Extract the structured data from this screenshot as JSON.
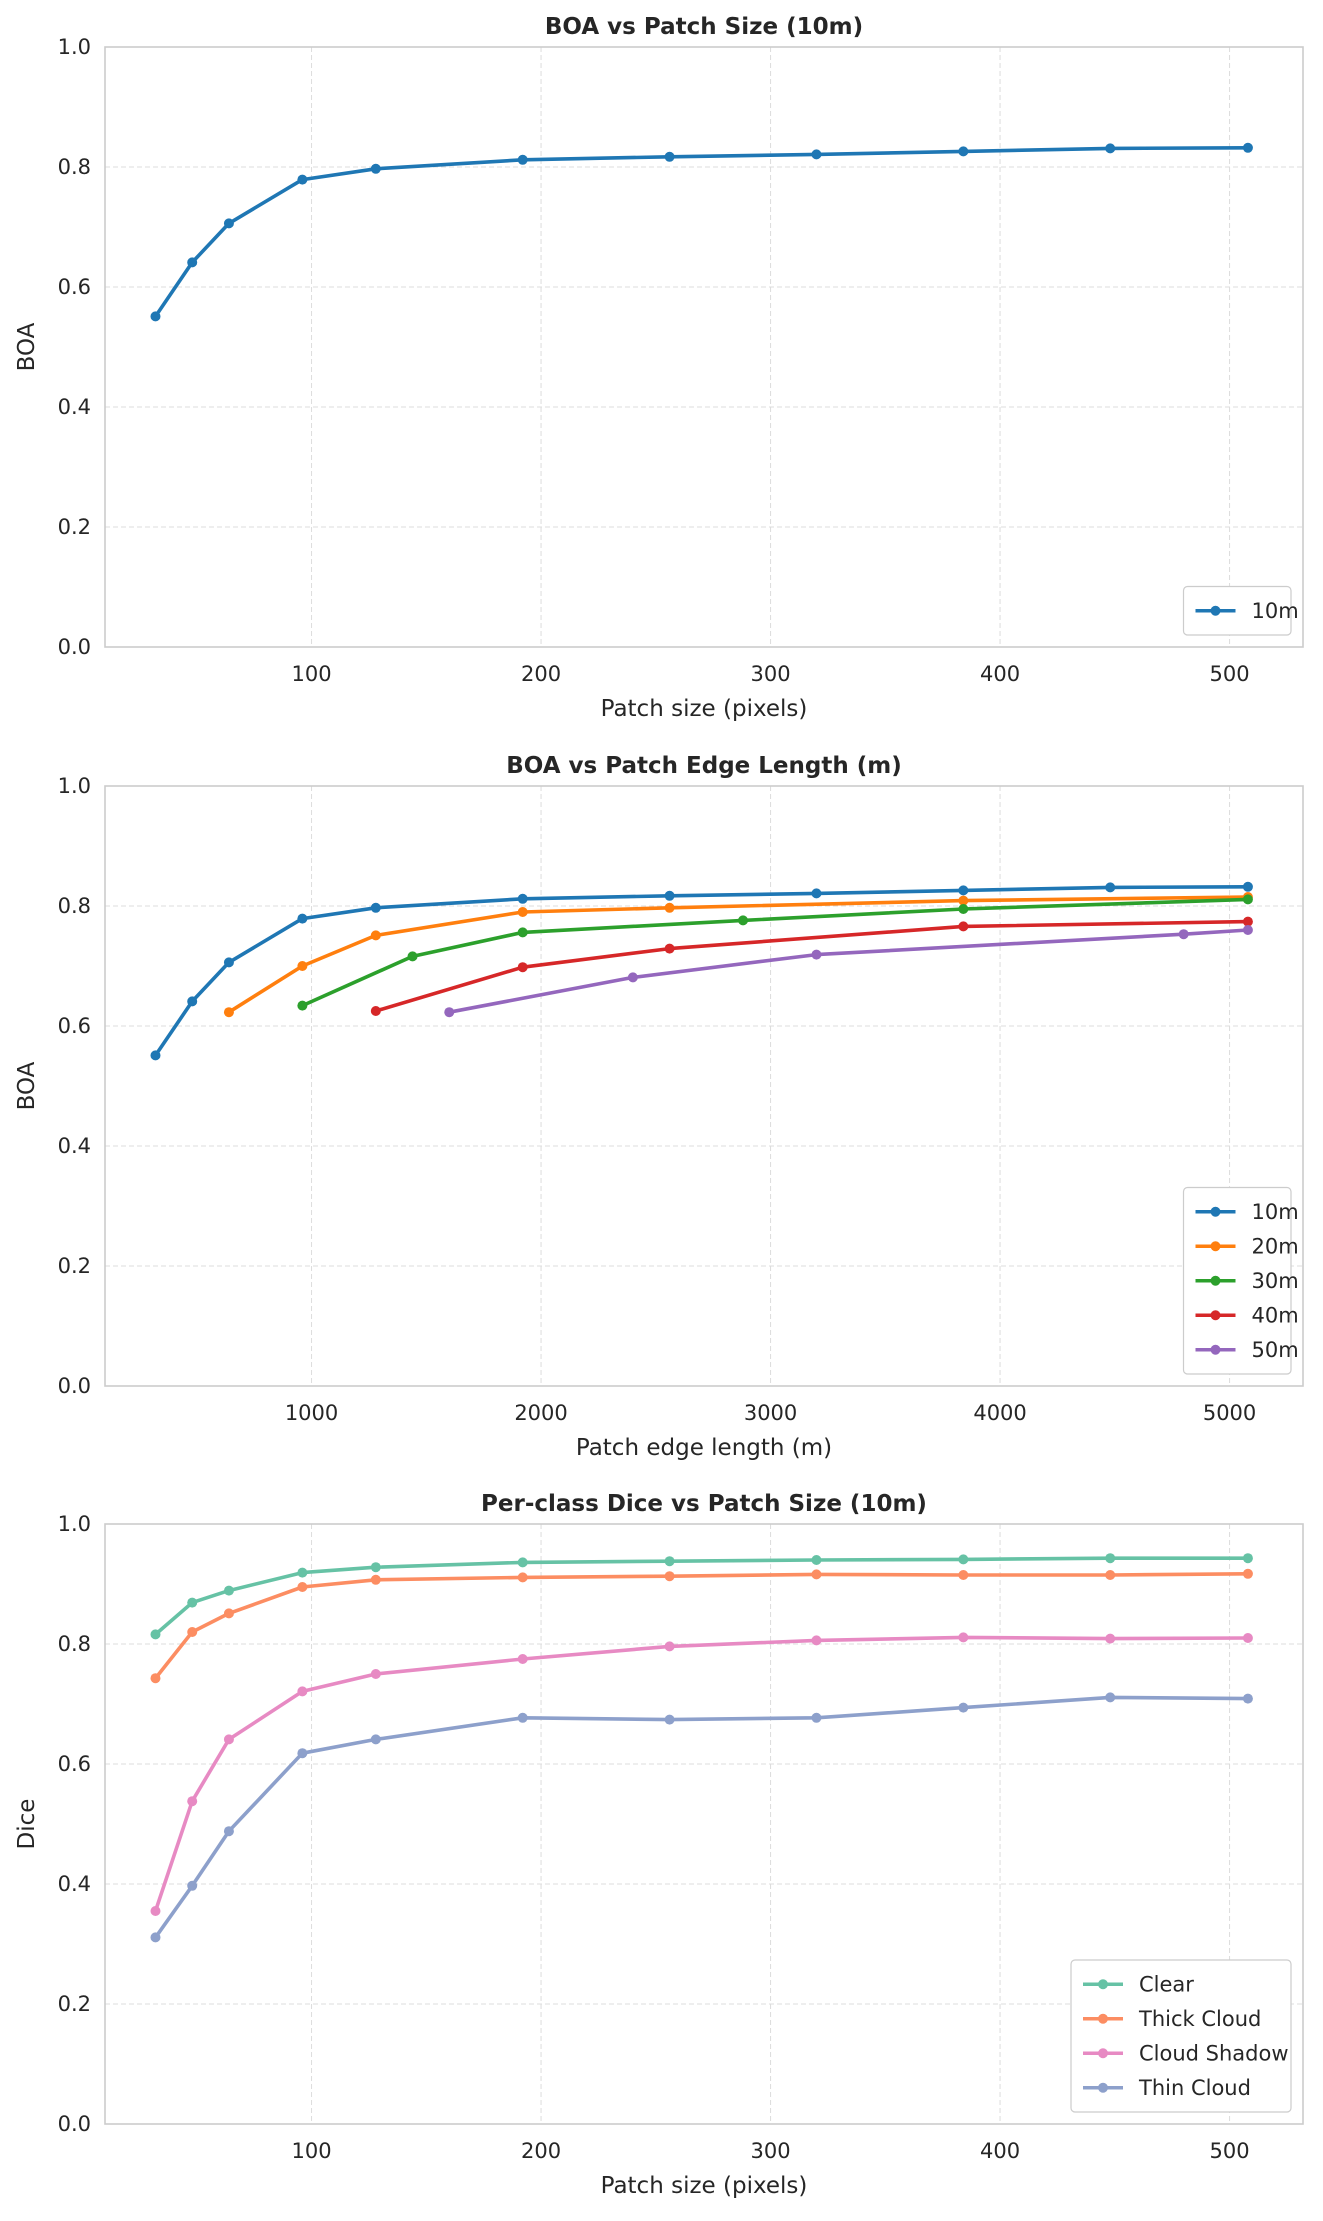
{
  "chart_data": [
    {
      "type": "line",
      "title": "BOA vs Patch Size (10m)",
      "xlabel": "Patch size (pixels)",
      "ylabel": "BOA",
      "xlim": [
        10,
        532
      ],
      "ylim": [
        0,
        1
      ],
      "xticks": [
        100,
        200,
        300,
        400,
        500
      ],
      "yticks": [
        0,
        0.2,
        0.4,
        0.6,
        0.8,
        1
      ],
      "grid": true,
      "legend_position": "lower-right",
      "series": [
        {
          "name": "10m",
          "color": "#1f77b4",
          "x": [
            32,
            48,
            64,
            96,
            128,
            192,
            256,
            320,
            384,
            448,
            508
          ],
          "y": [
            0.551,
            0.641,
            0.706,
            0.779,
            0.797,
            0.812,
            0.817,
            0.821,
            0.826,
            0.831,
            0.832
          ]
        }
      ]
    },
    {
      "type": "line",
      "title": "BOA vs Patch Edge Length (m)",
      "xlabel": "Patch edge length (m)",
      "ylabel": "BOA",
      "xlim": [
        100,
        5320
      ],
      "ylim": [
        0,
        1
      ],
      "xticks": [
        1000,
        2000,
        3000,
        4000,
        5000
      ],
      "yticks": [
        0,
        0.2,
        0.4,
        0.6,
        0.8,
        1
      ],
      "grid": true,
      "legend_position": "lower-right",
      "series": [
        {
          "name": "10m",
          "color": "#1f77b4",
          "x": [
            320,
            480,
            640,
            960,
            1280,
            1920,
            2560,
            3200,
            3840,
            4480,
            5080
          ],
          "y": [
            0.551,
            0.641,
            0.706,
            0.779,
            0.797,
            0.812,
            0.817,
            0.821,
            0.826,
            0.831,
            0.832
          ]
        },
        {
          "name": "20m",
          "color": "#ff7f0e",
          "x": [
            640,
            960,
            1280,
            1920,
            2560,
            3840,
            5080
          ],
          "y": [
            0.623,
            0.7,
            0.751,
            0.79,
            0.797,
            0.809,
            0.815
          ]
        },
        {
          "name": "30m",
          "color": "#2ca02c",
          "x": [
            960,
            1440,
            1920,
            2880,
            3840,
            5080
          ],
          "y": [
            0.634,
            0.716,
            0.756,
            0.776,
            0.795,
            0.811
          ]
        },
        {
          "name": "40m",
          "color": "#d62728",
          "x": [
            1280,
            1920,
            2560,
            3840,
            5080
          ],
          "y": [
            0.625,
            0.698,
            0.729,
            0.766,
            0.774
          ]
        },
        {
          "name": "50m",
          "color": "#9467bd",
          "x": [
            1600,
            2400,
            3200,
            4800,
            5080
          ],
          "y": [
            0.623,
            0.681,
            0.719,
            0.753,
            0.76
          ]
        }
      ]
    },
    {
      "type": "line",
      "title": "Per-class Dice vs Patch Size (10m)",
      "xlabel": "Patch size (pixels)",
      "ylabel": "Dice",
      "xlim": [
        10,
        532
      ],
      "ylim": [
        0,
        1
      ],
      "xticks": [
        100,
        200,
        300,
        400,
        500
      ],
      "yticks": [
        0,
        0.2,
        0.4,
        0.6,
        0.8,
        1
      ],
      "grid": true,
      "legend_position": "lower-right",
      "series": [
        {
          "name": "Clear",
          "color": "#66c2a5",
          "x": [
            32,
            48,
            64,
            96,
            128,
            192,
            256,
            320,
            384,
            448,
            508
          ],
          "y": [
            0.816,
            0.869,
            0.889,
            0.919,
            0.928,
            0.936,
            0.938,
            0.94,
            0.941,
            0.943,
            0.943
          ]
        },
        {
          "name": "Thick Cloud",
          "color": "#fc8d62",
          "x": [
            32,
            48,
            64,
            96,
            128,
            192,
            256,
            320,
            384,
            448,
            508
          ],
          "y": [
            0.743,
            0.82,
            0.851,
            0.895,
            0.907,
            0.911,
            0.913,
            0.916,
            0.915,
            0.915,
            0.917
          ]
        },
        {
          "name": "Cloud Shadow",
          "color": "#e78ac3",
          "x": [
            32,
            48,
            64,
            96,
            128,
            192,
            256,
            320,
            384,
            448,
            508
          ],
          "y": [
            0.355,
            0.538,
            0.641,
            0.721,
            0.75,
            0.775,
            0.796,
            0.806,
            0.811,
            0.809,
            0.81
          ]
        },
        {
          "name": "Thin Cloud",
          "color": "#8da0cb",
          "x": [
            32,
            48,
            64,
            96,
            128,
            192,
            256,
            320,
            384,
            448,
            508
          ],
          "y": [
            0.311,
            0.397,
            0.488,
            0.618,
            0.641,
            0.677,
            0.674,
            0.677,
            0.694,
            0.711,
            0.709
          ]
        }
      ]
    }
  ]
}
